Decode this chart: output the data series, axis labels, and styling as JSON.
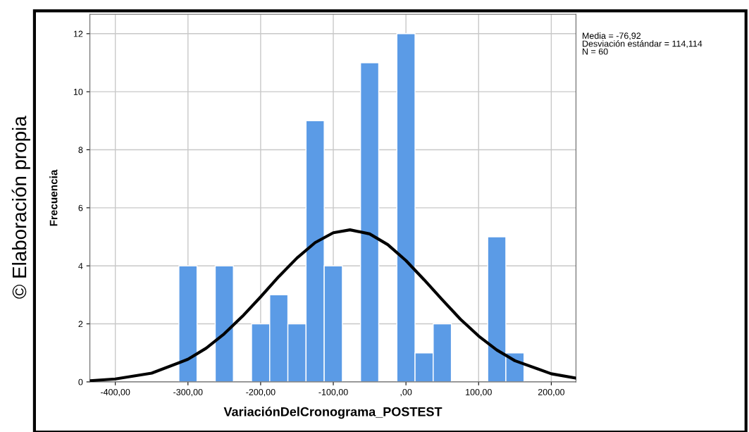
{
  "chart_data": {
    "type": "histogram",
    "xlabel": "VariaciónDelCronograma_POSTEST",
    "ylabel": "Frecuencia",
    "bins": [
      -312.5,
      -287.5,
      -262.5,
      -237.5,
      -212.5,
      -187.5,
      -162.5,
      -137.5,
      -112.5,
      -87.5,
      -62.5,
      -37.5,
      -12.5,
      12.5,
      37.5,
      62.5,
      87.5,
      112.5,
      137.5,
      162.5
    ],
    "values": [
      4,
      0,
      4,
      0,
      2,
      3,
      2,
      9,
      4,
      0,
      11,
      0,
      12,
      1,
      2,
      0,
      0,
      5,
      1
    ],
    "color": "#5b9be6",
    "series": [
      {
        "type": "line",
        "color": "#000000",
        "x": [
          -435,
          -400,
          -350,
          -300,
          -275,
          -250,
          -225,
          -200,
          -175,
          -150,
          -125,
          -100,
          -77,
          -50,
          -25,
          0,
          25,
          50,
          75,
          100,
          125,
          150,
          200,
          234
        ],
        "values": [
          0.04,
          0.1,
          0.3,
          0.78,
          1.16,
          1.66,
          2.26,
          2.93,
          3.63,
          4.27,
          4.8,
          5.14,
          5.24,
          5.1,
          4.73,
          4.18,
          3.52,
          2.83,
          2.16,
          1.58,
          1.1,
          0.73,
          0.28,
          0.13
        ]
      }
    ],
    "xlim": [
      -435,
      234
    ],
    "xticks": [
      {
        "value": -400,
        "label": "-400,00"
      },
      {
        "value": -300,
        "label": "-300,00"
      },
      {
        "value": -200,
        "label": "-200,00"
      },
      {
        "value": -100,
        "label": "-100,00"
      },
      {
        "value": 0,
        "label": ",00"
      },
      {
        "value": 100,
        "label": "100,00"
      },
      {
        "value": 200,
        "label": "200,00"
      }
    ],
    "ylim": [
      0,
      12.67
    ],
    "yticks": [
      0,
      2,
      4,
      6,
      8,
      10,
      12
    ],
    "grid": true,
    "annotations": [
      "© Elaboración propia",
      "Media = -76,92",
      "Desviación estándar = 114,114",
      "N = 60"
    ]
  }
}
